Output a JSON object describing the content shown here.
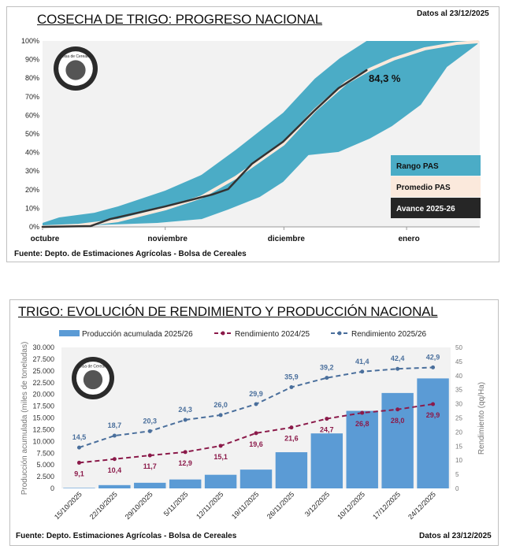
{
  "colors": {
    "band": "#4bacc6",
    "avg": "#fbe9dc",
    "advance": "#333333",
    "bars": "#5b9bd5",
    "rend2425": "#8b1a4a",
    "rend2526": "#4a6f9c",
    "plot_bg": "#f2f2f2"
  },
  "top": {
    "title": "COSECHA DE TRIGO: PROGRESO NACIONAL",
    "date": "Datos al 23/12/2025",
    "source": "Fuente: Depto. de Estimaciones Agrícolas - Bolsa de Cereales",
    "logo_text": "Bolsa de Cereales",
    "callout": "84,3 %",
    "legend": [
      "Rango PAS",
      "Promedio PAS",
      "Avance 2025-26"
    ]
  },
  "bottom": {
    "title": "TRIGO: EVOLUCIÓN DE RENDIMIENTO Y PRODUCCIÓN NACIONAL",
    "legend": [
      "Producción acumulada 2025/26",
      "Rendimiento 2024/25",
      "Rendimiento 2025/26"
    ],
    "source": "Fuente: Depto. Estimaciones Agrícolas - Bolsa de Cereales",
    "date": "Datos al 23/12/2025",
    "logo_text": "Bolsa de Cereales"
  },
  "chart_data": [
    {
      "type": "area",
      "title": "COSECHA DE TRIGO: PROGRESO NACIONAL",
      "xlabel": "",
      "ylabel": "",
      "x_unit": "days since 1 October",
      "xlim": [
        0,
        110.5
      ],
      "ylim": [
        0,
        100
      ],
      "x_ticks": [
        {
          "x": 0,
          "label": "octubre"
        },
        {
          "x": 31,
          "label": "noviembre"
        },
        {
          "x": 61,
          "label": "diciembre"
        },
        {
          "x": 92,
          "label": "enero"
        }
      ],
      "y_ticks": [
        "0%",
        "10%",
        "20%",
        "30%",
        "40%",
        "50%",
        "60%",
        "70%",
        "80%",
        "90%",
        "100%"
      ],
      "legend_position": "bottom-right",
      "series": [
        {
          "name": "Rango PAS (upper)",
          "points": [
            [
              0,
              2.1
            ],
            [
              4.2,
              5.1
            ],
            [
              13.1,
              7.6
            ],
            [
              19.1,
              11
            ],
            [
              31,
              19.5
            ],
            [
              40.2,
              28
            ],
            [
              48.9,
              41.5
            ],
            [
              60.8,
              61.4
            ],
            [
              68.8,
              79.7
            ],
            [
              75.1,
              90.7
            ],
            [
              81.9,
              100
            ],
            [
              110.3,
              100
            ]
          ]
        },
        {
          "name": "Rango PAS (lower)",
          "points": [
            [
              0,
              0
            ],
            [
              29,
              2.1
            ],
            [
              40.2,
              4.2
            ],
            [
              46.9,
              9.3
            ],
            [
              54.9,
              16.1
            ],
            [
              60.8,
              24.2
            ],
            [
              67.2,
              38.6
            ],
            [
              74.8,
              40.3
            ],
            [
              82.7,
              47.5
            ],
            [
              88.3,
              54.2
            ],
            [
              95.6,
              65.7
            ],
            [
              102.2,
              86
            ],
            [
              109.9,
              98.3
            ]
          ]
        },
        {
          "name": "Promedio PAS",
          "points": [
            [
              0,
              0
            ],
            [
              9.1,
              0.8
            ],
            [
              19.1,
              3.4
            ],
            [
              31,
              9.7
            ],
            [
              40.2,
              16.1
            ],
            [
              48.9,
              26.7
            ],
            [
              60.8,
              44.5
            ],
            [
              68.8,
              62.7
            ],
            [
              76.7,
              77.5
            ],
            [
              82.7,
              84.7
            ],
            [
              88.7,
              90.3
            ],
            [
              96.6,
              95.8
            ],
            [
              104.6,
              98.7
            ],
            [
              109.9,
              99.6
            ]
          ]
        },
        {
          "name": "Avance 2025-26",
          "points": [
            [
              0,
              0
            ],
            [
              12.1,
              0.4
            ],
            [
              17.1,
              4.2
            ],
            [
              24.1,
              7.6
            ],
            [
              31,
              11
            ],
            [
              39,
              15.3
            ],
            [
              42.9,
              17.4
            ],
            [
              46.9,
              20.3
            ],
            [
              52.9,
              33.9
            ],
            [
              60.8,
              45.8
            ],
            [
              68.8,
              62.7
            ],
            [
              74.8,
              74.6
            ],
            [
              81.9,
              84.3
            ]
          ]
        }
      ]
    },
    {
      "type": "bar",
      "title": "TRIGO: EVOLUCIÓN DE RENDIMIENTO Y PRODUCCIÓN NACIONAL",
      "ylabel": "Producción acumulada (miles de toneladas)",
      "y2label": "Rendimiento (qq/Ha)",
      "ylim": [
        0,
        30000
      ],
      "y2lim": [
        0,
        50
      ],
      "y_ticks": [
        "0",
        "2.500",
        "5.000",
        "7.500",
        "10.000",
        "12.500",
        "15.000",
        "17.500",
        "20.000",
        "22.500",
        "25.000",
        "27.500",
        "30.000"
      ],
      "y2_ticks": [
        "0",
        "5",
        "10",
        "15",
        "20",
        "25",
        "30",
        "35",
        "40",
        "45",
        "50"
      ],
      "legend_position": "top",
      "categories": [
        "15/10/2025",
        "22/10/2025",
        "29/10/2025",
        "5/11/2025",
        "12/11/2025",
        "19/11/2025",
        "26/11/2025",
        "3/12/2025",
        "10/12/2025",
        "17/12/2025",
        "24/12/2025"
      ],
      "series": [
        {
          "name": "Producción acumulada 2025/26",
          "type": "bar",
          "axis": "left",
          "values": [
            100,
            700,
            1200,
            1900,
            2900,
            4000,
            7700,
            11700,
            16500,
            20300,
            23400
          ]
        },
        {
          "name": "Rendimiento 2024/25",
          "type": "line",
          "axis": "right",
          "values": [
            9.1,
            10.4,
            11.7,
            12.9,
            15.1,
            19.6,
            21.6,
            24.7,
            26.8,
            28.0,
            29.9
          ],
          "labels": [
            "9,1",
            "10,4",
            "11,7",
            "12,9",
            "15,1",
            "19,6",
            "21,6",
            "24,7",
            "26,8",
            "28,0",
            "29,9"
          ]
        },
        {
          "name": "Rendimiento 2025/26",
          "type": "line",
          "axis": "right",
          "values": [
            14.5,
            18.7,
            20.3,
            24.3,
            26.0,
            29.9,
            35.9,
            39.2,
            41.4,
            42.4,
            42.9
          ],
          "labels": [
            "14,5",
            "18,7",
            "20,3",
            "24,3",
            "26,0",
            "29,9",
            "35,9",
            "39,2",
            "41,4",
            "42,4",
            "42,9"
          ]
        }
      ]
    }
  ]
}
